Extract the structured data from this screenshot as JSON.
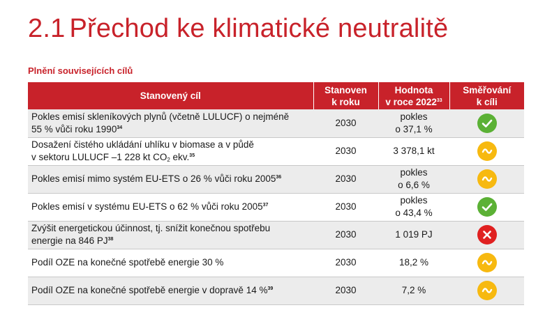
{
  "header": {
    "section_number": "2.1",
    "title": "Přechod ke klimatické neutralitě"
  },
  "subtitle": "Plnění souvisejících cílů",
  "colors": {
    "accent": "#c8222a",
    "on_track": "#5bb135",
    "partial": "#f7b910",
    "off_track": "#e02020"
  },
  "table": {
    "headers": {
      "goal": "Stanovený cíl",
      "year_line1": "Stanoven",
      "year_line2": "k roku",
      "value_line1": "Hodnota",
      "value_line2": "v roce 2022",
      "value_footnote": "33",
      "status_line1": "Směřování",
      "status_line2": "k cíli"
    },
    "rows": [
      {
        "goal_line1": "Pokles emisí skleníkových plynů (včetně LULUCF) o nejméně",
        "goal_line2": "55 % vůči roku 1990",
        "footnote": "34",
        "year": "2030",
        "value_line1": "pokles",
        "value_line2": "o 37,1 %",
        "status": "check-icon"
      },
      {
        "goal_line1": "Dosažení čistého ukládání uhlíku v biomase a v půdě",
        "goal_line2a": "v sektoru LULUCF –1 228 kt CO",
        "goal_sub": "2",
        "goal_line2b": " ekv.",
        "footnote": "35",
        "year": "2030",
        "value_line1": "3 378,1 kt",
        "status": "wave-icon"
      },
      {
        "goal_line1": "Pokles emisí mimo systém EU-ETS o 26 % vůči roku 2005",
        "footnote": "36",
        "year": "2030",
        "value_line1": "pokles",
        "value_line2": "o 6,6 %",
        "status": "wave-icon"
      },
      {
        "goal_line1": "Pokles emisí v systému EU-ETS o 62 % vůči roku 2005",
        "footnote": "37",
        "year": "2030",
        "value_line1": "pokles",
        "value_line2": "o 43,4 %",
        "status": "check-icon"
      },
      {
        "goal_line1": "Zvýšit energetickou účinnost, tj. snížit konečnou spotřebu",
        "goal_line2": "energie na 846 PJ",
        "footnote": "38",
        "year": "2030",
        "value_line1": "1 019 PJ",
        "status": "cross-icon"
      },
      {
        "goal_line1": "Podíl OZE na konečné spotřebě energie 30 %",
        "year": "2030",
        "value_line1": "18,2 %",
        "status": "wave-icon"
      },
      {
        "goal_line1": "Podíl OZE na konečné spotřebě energie v dopravě 14 %",
        "footnote": "39",
        "year": "2030",
        "value_line1": "7,2 %",
        "status": "wave-icon"
      }
    ]
  }
}
